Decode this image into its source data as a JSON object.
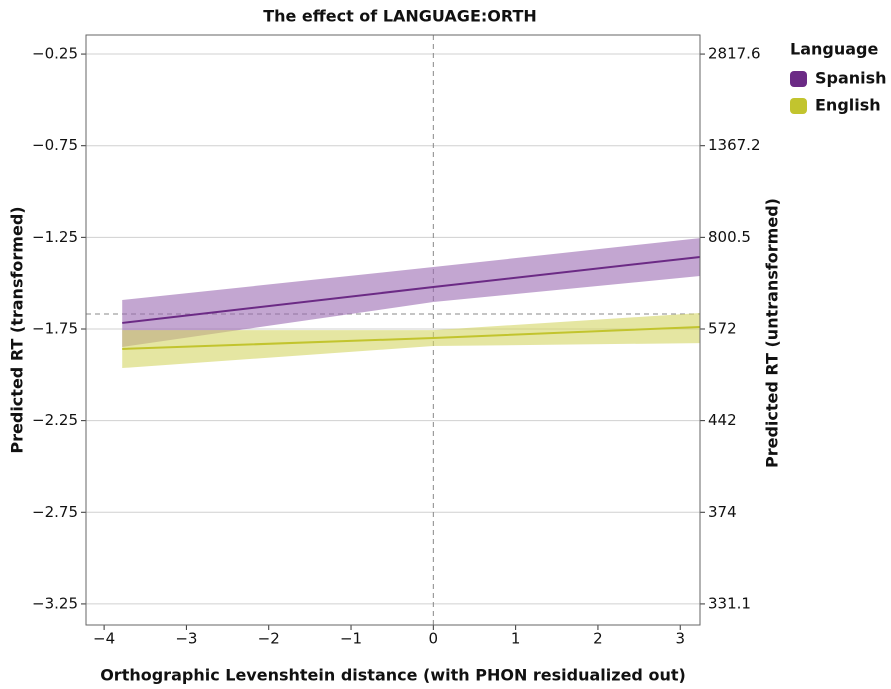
{
  "chart_data": {
    "type": "line_ribbon",
    "title": "The effect of LANGUAGE:ORTH",
    "x_label": "Orthographic Levenshtein distance (with PHON residualized out)",
    "y_label": "Predicted RT (transformed)",
    "y2_label": "Predicted RT (untransformed)",
    "legend_title": "Language",
    "legend_position": "right",
    "grid": true,
    "xlim": [
      -4.22,
      3.24
    ],
    "ylim": [
      -3.365,
      -0.146
    ],
    "xticks": [
      {
        "value": -4,
        "label": "−4"
      },
      {
        "value": -3,
        "label": "−3"
      },
      {
        "value": -2,
        "label": "−2"
      },
      {
        "value": -1,
        "label": "−1"
      },
      0,
      1,
      2,
      3
    ],
    "yticks": [
      {
        "value": -0.25,
        "label": "−0.25"
      },
      {
        "value": -0.75,
        "label": "−0.75"
      },
      {
        "value": -1.25,
        "label": "−1.25"
      },
      {
        "value": -1.75,
        "label": "−1.75"
      },
      {
        "value": -2.25,
        "label": "−2.25"
      },
      {
        "value": -2.75,
        "label": "−2.75"
      },
      {
        "value": -3.25,
        "label": "−3.25"
      }
    ],
    "y2ticks": [
      2817.6,
      1367.2,
      800.5,
      572,
      442,
      374,
      331.1
    ],
    "hline": -1.668,
    "vline": 0,
    "x": [
      -3.78,
      0,
      3.24
    ],
    "series": [
      {
        "name": "Spanish",
        "color": "#6b2a85",
        "band_color": "#9b6bb3",
        "values": [
          -1.717,
          -1.521,
          -1.357
        ],
        "lower": [
          -1.848,
          -1.603,
          -1.461
        ],
        "upper": [
          -1.592,
          -1.412,
          -1.254
        ]
      },
      {
        "name": "English",
        "color": "#c2c42e",
        "band_color": "#d3d564",
        "values": [
          -1.859,
          -1.799,
          -1.739
        ],
        "lower": [
          -1.963,
          -1.843,
          -1.827
        ],
        "upper": [
          -1.756,
          -1.756,
          -1.663
        ]
      }
    ]
  }
}
